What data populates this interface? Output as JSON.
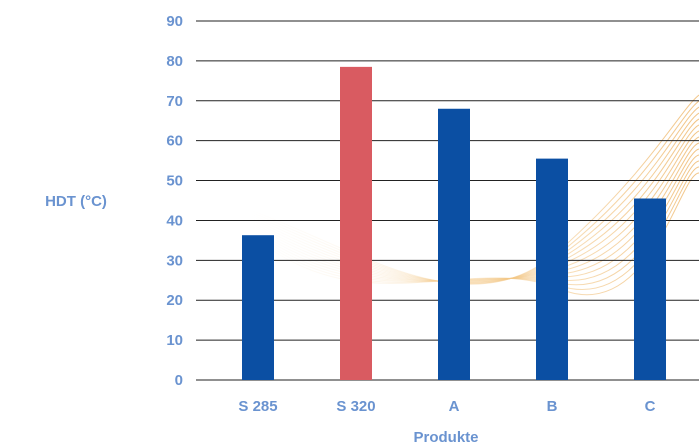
{
  "chart_data": {
    "type": "bar",
    "categories": [
      "S 285",
      "S 320",
      "A",
      "B",
      "C"
    ],
    "values": [
      36.3,
      78.5,
      68.0,
      55.5,
      45.5
    ],
    "bar_colors": [
      "#0b4fa3",
      "#d95b61",
      "#0b4fa3",
      "#0b4fa3",
      "#0b4fa3"
    ],
    "title": "",
    "xlabel": "Produkte",
    "ylabel": "HDT (°C)",
    "ylim": [
      0,
      90
    ],
    "yticks": [
      0,
      10,
      20,
      30,
      40,
      50,
      60,
      70,
      80,
      90
    ],
    "grid": true,
    "legend": "none"
  },
  "colors": {
    "label": "#6a93d0",
    "grid": "#222222",
    "background_wave": "#f3c98a"
  }
}
